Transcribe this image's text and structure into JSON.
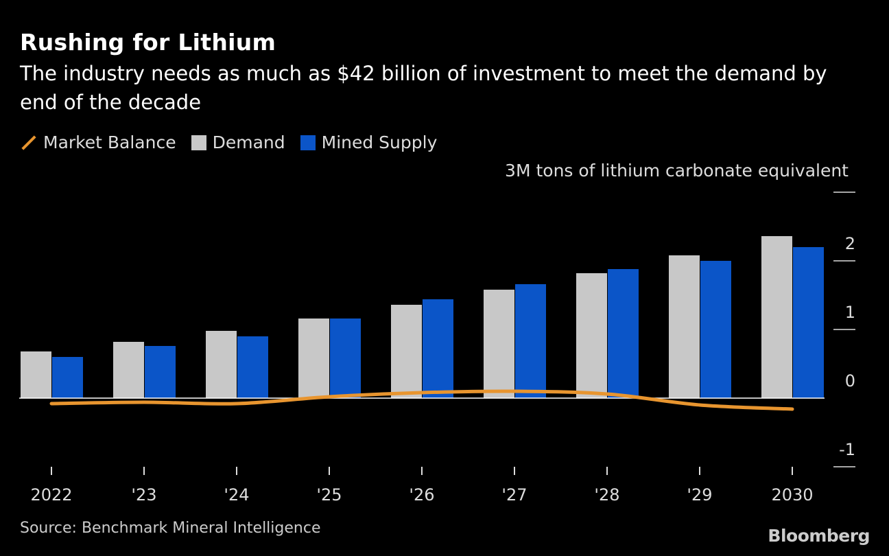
{
  "chart_data": {
    "type": "bar",
    "title": "Rushing for Lithium",
    "subtitle": "The industry needs as much as $42 billion of investment to meet the demand by end of the decade",
    "ylabel": "3M tons of lithium carbonate equivalent",
    "xlabel": "",
    "categories": [
      "2022",
      "'23",
      "'24",
      "'25",
      "'26",
      "'27",
      "'28",
      "'29",
      "2030"
    ],
    "ylim": [
      -1,
      3
    ],
    "yticks": [
      -1,
      0,
      1,
      2,
      3
    ],
    "ytick_labels": [
      "-1",
      "0",
      "1",
      "2",
      ""
    ],
    "grid": false,
    "legend_position": "top-left",
    "series": [
      {
        "name": "Market Balance",
        "type": "line",
        "color": "#e8952f",
        "values": [
          -0.08,
          -0.06,
          -0.08,
          0.02,
          0.08,
          0.1,
          0.06,
          -0.1,
          -0.16
        ]
      },
      {
        "name": "Demand",
        "type": "bar",
        "color": "#c8c8c8",
        "values": [
          0.68,
          0.82,
          0.98,
          1.16,
          1.36,
          1.58,
          1.82,
          2.08,
          2.36
        ]
      },
      {
        "name": "Mined Supply",
        "type": "bar",
        "color": "#0b55c8",
        "values": [
          0.6,
          0.76,
          0.9,
          1.16,
          1.44,
          1.66,
          1.88,
          2.0,
          2.2
        ]
      }
    ]
  },
  "source": "Source: Benchmark Mineral Intelligence",
  "brand": "Bloomberg"
}
